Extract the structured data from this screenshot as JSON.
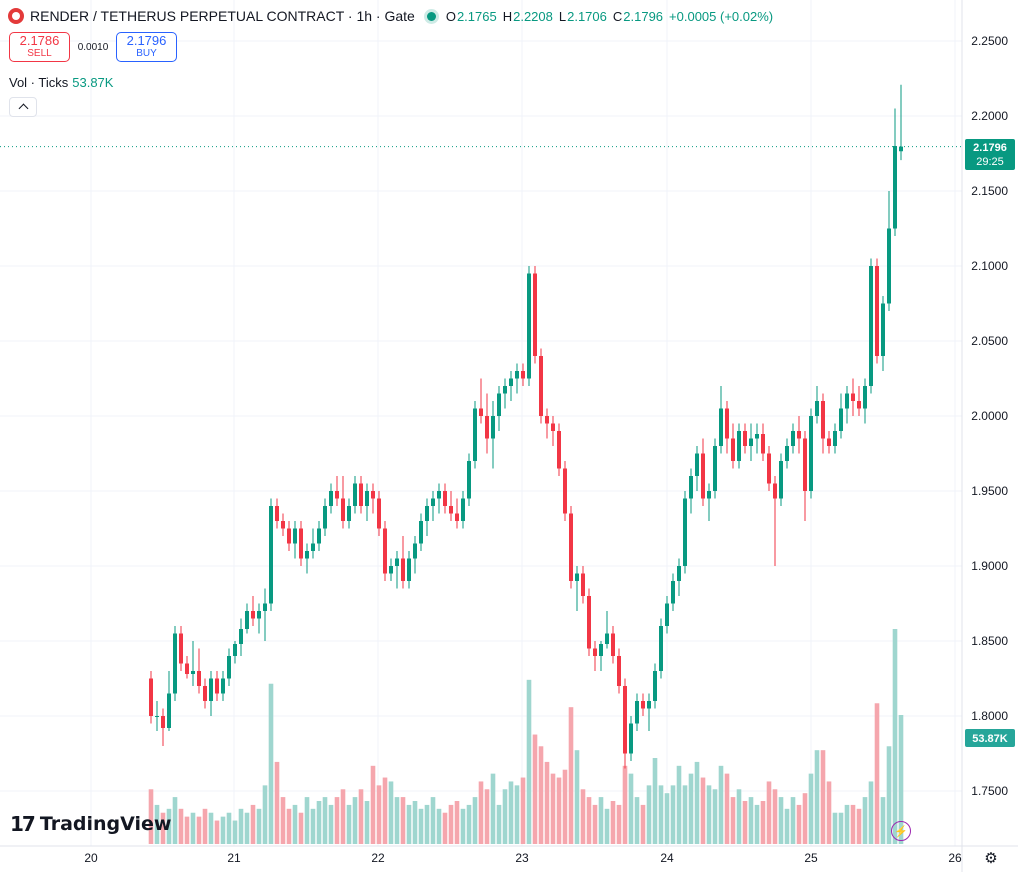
{
  "header": {
    "symbol_title": "RENDER / TETHERUS PERPETUAL CONTRACT · 1h · Gate",
    "ohlc": {
      "o_label": "O",
      "o_value": "2.1765",
      "h_label": "H",
      "h_value": "2.2208",
      "l_label": "L",
      "l_value": "2.1706",
      "c_label": "C",
      "c_value": "2.1796",
      "change": "+0.0005 (+0.02%)"
    }
  },
  "trade": {
    "sell_price": "2.1786",
    "sell_label": "SELL",
    "spread": "0.0010",
    "buy_price": "2.1796",
    "buy_label": "BUY"
  },
  "volume_legend": {
    "label": "Vol · Ticks",
    "value": "53.87K"
  },
  "price_tag": {
    "price": "2.1796",
    "countdown": "29:25"
  },
  "volume_tag": {
    "value": "53.87K"
  },
  "branding": {
    "logo_text": "TradingView"
  },
  "colors": {
    "up": "#089981",
    "down": "#f23645",
    "up_volume": "#9fd6cf",
    "down_volume": "#f5a6ad",
    "grid": "#f0f3fa"
  },
  "chart_data": {
    "type": "candlestick",
    "x_ticks": [
      "20",
      "21",
      "22",
      "23",
      "24",
      "25",
      "26"
    ],
    "y_ticks": [
      "2.2500",
      "2.2000",
      "2.1500",
      "2.1000",
      "2.0500",
      "2.0000",
      "1.9500",
      "1.9000",
      "1.8500",
      "1.8000",
      "1.7500"
    ],
    "ylim": [
      1.72,
      2.265
    ],
    "last_price": 2.1796,
    "volume_max": 55,
    "candles": [
      [
        1.825,
        1.83,
        1.795,
        1.8,
        14
      ],
      [
        1.8,
        1.81,
        1.79,
        1.8,
        10
      ],
      [
        1.8,
        1.805,
        1.78,
        1.792,
        8
      ],
      [
        1.792,
        1.83,
        1.79,
        1.815,
        9
      ],
      [
        1.815,
        1.86,
        1.81,
        1.855,
        12
      ],
      [
        1.855,
        1.86,
        1.83,
        1.835,
        9
      ],
      [
        1.835,
        1.84,
        1.825,
        1.828,
        7
      ],
      [
        1.828,
        1.85,
        1.82,
        1.83,
        8
      ],
      [
        1.83,
        1.845,
        1.815,
        1.82,
        7
      ],
      [
        1.82,
        1.825,
        1.805,
        1.81,
        9
      ],
      [
        1.81,
        1.83,
        1.8,
        1.825,
        8
      ],
      [
        1.825,
        1.83,
        1.81,
        1.815,
        6
      ],
      [
        1.815,
        1.83,
        1.81,
        1.825,
        7
      ],
      [
        1.825,
        1.845,
        1.82,
        1.84,
        8
      ],
      [
        1.84,
        1.85,
        1.835,
        1.848,
        6
      ],
      [
        1.848,
        1.865,
        1.84,
        1.858,
        9
      ],
      [
        1.858,
        1.875,
        1.855,
        1.87,
        8
      ],
      [
        1.87,
        1.88,
        1.86,
        1.865,
        10
      ],
      [
        1.865,
        1.875,
        1.855,
        1.87,
        9
      ],
      [
        1.87,
        1.885,
        1.85,
        1.875,
        15
      ],
      [
        1.875,
        1.945,
        1.87,
        1.94,
        41
      ],
      [
        1.94,
        1.945,
        1.925,
        1.93,
        21
      ],
      [
        1.93,
        1.935,
        1.92,
        1.925,
        12
      ],
      [
        1.925,
        1.93,
        1.91,
        1.915,
        9
      ],
      [
        1.915,
        1.93,
        1.905,
        1.925,
        10
      ],
      [
        1.925,
        1.93,
        1.9,
        1.905,
        8
      ],
      [
        1.905,
        1.915,
        1.895,
        1.91,
        12
      ],
      [
        1.91,
        1.925,
        1.905,
        1.915,
        9
      ],
      [
        1.915,
        1.93,
        1.91,
        1.925,
        11
      ],
      [
        1.925,
        1.945,
        1.92,
        1.94,
        12
      ],
      [
        1.94,
        1.955,
        1.935,
        1.95,
        10
      ],
      [
        1.95,
        1.96,
        1.94,
        1.945,
        12
      ],
      [
        1.945,
        1.96,
        1.925,
        1.93,
        14
      ],
      [
        1.93,
        1.945,
        1.925,
        1.94,
        10
      ],
      [
        1.94,
        1.96,
        1.935,
        1.955,
        12
      ],
      [
        1.955,
        1.96,
        1.935,
        1.94,
        14
      ],
      [
        1.94,
        1.955,
        1.93,
        1.95,
        11
      ],
      [
        1.95,
        1.955,
        1.935,
        1.945,
        20
      ],
      [
        1.945,
        1.95,
        1.92,
        1.925,
        15
      ],
      [
        1.925,
        1.93,
        1.89,
        1.895,
        17
      ],
      [
        1.895,
        1.905,
        1.89,
        1.9,
        16
      ],
      [
        1.9,
        1.91,
        1.885,
        1.905,
        12
      ],
      [
        1.905,
        1.92,
        1.885,
        1.89,
        12
      ],
      [
        1.89,
        1.91,
        1.885,
        1.905,
        10
      ],
      [
        1.905,
        1.92,
        1.895,
        1.915,
        11
      ],
      [
        1.915,
        1.935,
        1.91,
        1.93,
        9
      ],
      [
        1.93,
        1.945,
        1.92,
        1.94,
        10
      ],
      [
        1.94,
        1.95,
        1.93,
        1.945,
        12
      ],
      [
        1.945,
        1.955,
        1.935,
        1.95,
        9
      ],
      [
        1.95,
        1.955,
        1.935,
        1.94,
        8
      ],
      [
        1.94,
        1.95,
        1.93,
        1.935,
        10
      ],
      [
        1.935,
        1.945,
        1.925,
        1.93,
        11
      ],
      [
        1.93,
        1.95,
        1.925,
        1.945,
        9
      ],
      [
        1.945,
        1.975,
        1.94,
        1.97,
        10
      ],
      [
        1.97,
        2.01,
        1.965,
        2.005,
        12
      ],
      [
        2.005,
        2.025,
        1.995,
        2.0,
        16
      ],
      [
        2.0,
        2.015,
        1.975,
        1.985,
        14
      ],
      [
        1.985,
        2.01,
        1.965,
        2.0,
        18
      ],
      [
        2.0,
        2.02,
        1.99,
        2.015,
        10
      ],
      [
        2.015,
        2.025,
        2.005,
        2.02,
        14
      ],
      [
        2.02,
        2.03,
        2.01,
        2.025,
        16
      ],
      [
        2.025,
        2.035,
        2.015,
        2.03,
        15
      ],
      [
        2.03,
        2.035,
        2.02,
        2.025,
        17
      ],
      [
        2.025,
        2.1,
        2.02,
        2.095,
        42
      ],
      [
        2.095,
        2.1,
        2.035,
        2.04,
        28
      ],
      [
        2.04,
        2.045,
        1.995,
        2.0,
        25
      ],
      [
        2.0,
        2.005,
        1.985,
        1.995,
        21
      ],
      [
        1.995,
        2.0,
        1.98,
        1.99,
        18
      ],
      [
        1.99,
        1.995,
        1.96,
        1.965,
        17
      ],
      [
        1.965,
        1.97,
        1.93,
        1.935,
        19
      ],
      [
        1.935,
        1.94,
        1.885,
        1.89,
        35
      ],
      [
        1.89,
        1.9,
        1.87,
        1.895,
        24
      ],
      [
        1.895,
        1.9,
        1.875,
        1.88,
        14
      ],
      [
        1.88,
        1.885,
        1.84,
        1.845,
        12
      ],
      [
        1.845,
        1.85,
        1.83,
        1.84,
        10
      ],
      [
        1.84,
        1.85,
        1.83,
        1.848,
        12
      ],
      [
        1.848,
        1.87,
        1.845,
        1.855,
        9
      ],
      [
        1.855,
        1.86,
        1.835,
        1.84,
        11
      ],
      [
        1.84,
        1.845,
        1.815,
        1.82,
        10
      ],
      [
        1.82,
        1.825,
        1.765,
        1.775,
        20
      ],
      [
        1.775,
        1.8,
        1.77,
        1.795,
        18
      ],
      [
        1.795,
        1.815,
        1.79,
        1.81,
        12
      ],
      [
        1.81,
        1.815,
        1.8,
        1.805,
        10
      ],
      [
        1.805,
        1.815,
        1.79,
        1.81,
        15
      ],
      [
        1.81,
        1.835,
        1.805,
        1.83,
        22
      ],
      [
        1.83,
        1.865,
        1.825,
        1.86,
        15
      ],
      [
        1.86,
        1.88,
        1.855,
        1.875,
        13
      ],
      [
        1.875,
        1.895,
        1.87,
        1.89,
        15
      ],
      [
        1.89,
        1.905,
        1.88,
        1.9,
        20
      ],
      [
        1.9,
        1.95,
        1.895,
        1.945,
        15
      ],
      [
        1.945,
        1.965,
        1.935,
        1.96,
        18
      ],
      [
        1.96,
        1.98,
        1.95,
        1.975,
        21
      ],
      [
        1.975,
        1.985,
        1.94,
        1.945,
        17
      ],
      [
        1.945,
        1.955,
        1.93,
        1.95,
        15
      ],
      [
        1.95,
        1.985,
        1.945,
        1.98,
        14
      ],
      [
        1.98,
        2.02,
        1.975,
        2.005,
        20
      ],
      [
        2.005,
        2.01,
        1.975,
        1.985,
        18
      ],
      [
        1.985,
        1.995,
        1.965,
        1.97,
        12
      ],
      [
        1.97,
        1.995,
        1.965,
        1.99,
        14
      ],
      [
        1.99,
        1.995,
        1.975,
        1.98,
        11
      ],
      [
        1.98,
        1.995,
        1.97,
        1.985,
        12
      ],
      [
        1.985,
        1.995,
        1.975,
        1.988,
        10
      ],
      [
        1.988,
        1.995,
        1.97,
        1.975,
        11
      ],
      [
        1.975,
        1.98,
        1.95,
        1.955,
        16
      ],
      [
        1.955,
        1.96,
        1.9,
        1.945,
        14
      ],
      [
        1.945,
        1.975,
        1.94,
        1.97,
        12
      ],
      [
        1.97,
        1.985,
        1.965,
        1.98,
        9
      ],
      [
        1.98,
        1.995,
        1.975,
        1.99,
        12
      ],
      [
        1.99,
        2.0,
        1.975,
        1.985,
        10
      ],
      [
        1.985,
        1.99,
        1.93,
        1.95,
        13
      ],
      [
        1.95,
        2.005,
        1.945,
        2.0,
        18
      ],
      [
        2.0,
        2.02,
        1.995,
        2.01,
        24
      ],
      [
        2.01,
        2.015,
        1.975,
        1.985,
        24
      ],
      [
        1.985,
        1.99,
        1.975,
        1.98,
        16
      ],
      [
        1.98,
        1.995,
        1.975,
        1.99,
        8
      ],
      [
        1.99,
        2.015,
        1.985,
        2.005,
        8
      ],
      [
        2.005,
        2.02,
        1.995,
        2.015,
        10
      ],
      [
        2.015,
        2.025,
        2.0,
        2.01,
        10
      ],
      [
        2.01,
        2.02,
        2.0,
        2.005,
        9
      ],
      [
        2.005,
        2.025,
        1.995,
        2.02,
        12
      ],
      [
        2.02,
        2.105,
        2.015,
        2.1,
        16
      ],
      [
        2.1,
        2.105,
        2.035,
        2.04,
        36
      ],
      [
        2.04,
        2.08,
        2.03,
        2.075,
        12
      ],
      [
        2.075,
        2.15,
        2.07,
        2.125,
        25
      ],
      [
        2.125,
        2.205,
        2.12,
        2.18,
        55
      ],
      [
        2.1765,
        2.2208,
        2.1706,
        2.1796,
        33
      ]
    ]
  }
}
